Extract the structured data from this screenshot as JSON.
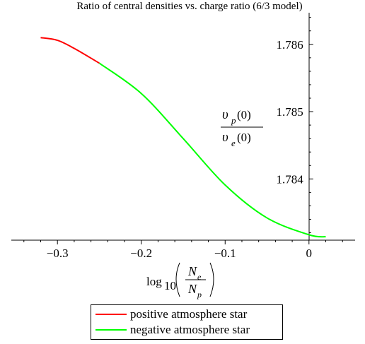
{
  "chart_data": {
    "type": "line",
    "title": "Ratio of central densities vs. charge ratio (6/3 model)",
    "xlabel": "log10(Ne/Np)",
    "ylabel": "υp(0)/υe(0)",
    "xlim": [
      -0.355,
      0.055
    ],
    "ylim": [
      1.78309,
      1.78647
    ],
    "x_ticks": [
      -0.3,
      -0.2,
      -0.1,
      0
    ],
    "x_tick_labels": [
      "−0.3",
      "−0.2",
      "−0.1",
      "0"
    ],
    "y_ticks": [
      1.784,
      1.785,
      1.786
    ],
    "y_tick_labels": [
      "1.784",
      "1.785",
      "1.786"
    ],
    "grid": false,
    "legend_position": "bottom-center",
    "series": [
      {
        "name": "positive atmosphere star",
        "color": "#ff0000",
        "x": [
          -0.32,
          -0.3,
          -0.28,
          -0.25
        ],
        "y": [
          1.7861,
          1.78606,
          1.78594,
          1.78572
        ]
      },
      {
        "name": "negative atmosphere star",
        "color": "#00ff00",
        "x": [
          -0.25,
          -0.2,
          -0.15,
          -0.1,
          -0.05,
          0,
          0.02
        ],
        "y": [
          1.78572,
          1.78527,
          1.7846,
          1.78391,
          1.78342,
          1.78317,
          1.78314
        ]
      }
    ]
  },
  "ylabel_parts": {
    "num_base": "υ",
    "num_sub": "p",
    "num_arg": "(0)",
    "den_base": "υ",
    "den_sub": "e",
    "den_arg": "(0)"
  },
  "xlabel_parts": {
    "log": "log",
    "log_sub": "10",
    "num_base": "N",
    "num_sub": "e",
    "den_base": "N",
    "den_sub": "p"
  }
}
